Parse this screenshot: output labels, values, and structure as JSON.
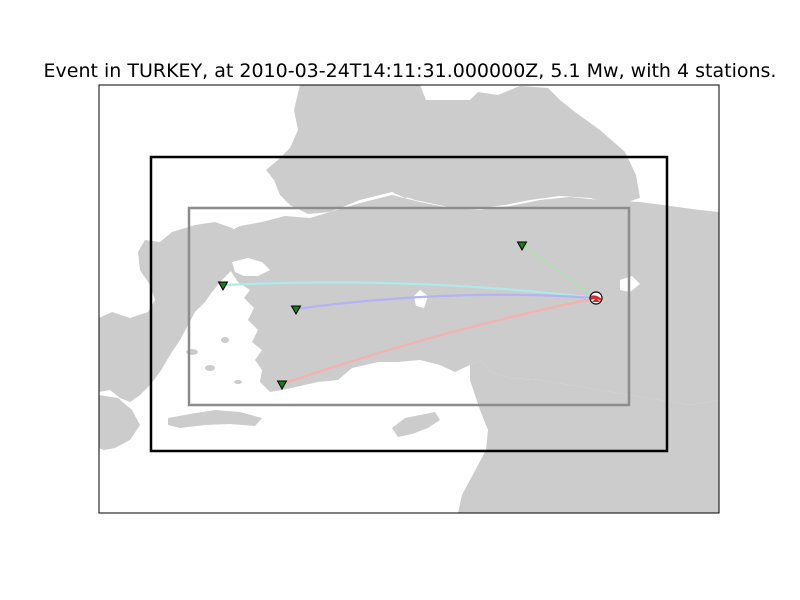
{
  "figure": {
    "title": "Event in TURKEY, at 2010-03-24T14:11:31.000000Z, 5.1 Mw, with 4 stations."
  },
  "event": {
    "region": "TURKEY",
    "origin_time": "2010-03-24T14:11:31.000000Z",
    "magnitude": "5.1 Mw",
    "station_count": 4
  },
  "colors": {
    "land": "#cccccc",
    "ocean": "#ffffff",
    "outer_box": "#000000",
    "inner_box": "#8c8c8c",
    "station_marker": "#1a7a1a",
    "event_marker": "#d62728",
    "ray_paths": [
      "#aeeaea",
      "#b3b3f5",
      "#b5dcb5",
      "#f5b0b0"
    ]
  },
  "stations": [
    {
      "marker": "triangle-down",
      "ray_color": "#aeeaea"
    },
    {
      "marker": "triangle-down",
      "ray_color": "#b3b3f5"
    },
    {
      "marker": "triangle-down",
      "ray_color": "#b5dcb5"
    },
    {
      "marker": "triangle-down",
      "ray_color": "#f5b0b0"
    }
  ]
}
